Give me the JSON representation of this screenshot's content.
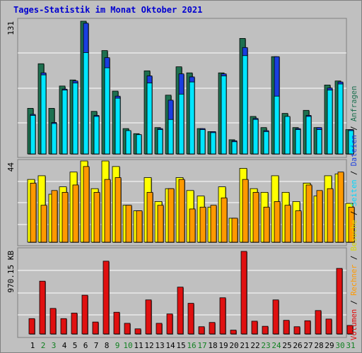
{
  "title": "Tages-Statistik im Monat Oktober 2021",
  "chart_data": {
    "type": "bar",
    "categories": [
      "1",
      "2",
      "3",
      "4",
      "5",
      "6",
      "7",
      "8",
      "9",
      "10",
      "11",
      "12",
      "13",
      "14",
      "15",
      "16",
      "17",
      "18",
      "19",
      "20",
      "21",
      "22",
      "23",
      "24",
      "25",
      "26",
      "27",
      "28",
      "29",
      "30",
      "31"
    ],
    "weekend_days": [
      "2",
      "3",
      "9",
      "10",
      "16",
      "17",
      "23",
      "24",
      "30",
      "31"
    ],
    "panels": [
      {
        "name": "top",
        "max_label": "131",
        "ylim": [
          0,
          131
        ],
        "series": [
          {
            "name": "Anfragen",
            "color": "#1e7050",
            "values": [
              45,
              89,
              45,
              67,
              73,
              131,
              42,
              102,
              62,
              25,
              20,
              82,
              26,
              58,
              86,
              80,
              25,
              22,
              80,
              14,
              114,
              37,
              26,
              96,
              40,
              26,
              43,
              26,
              68,
              72,
              24
            ]
          },
          {
            "name": "Dateien",
            "color": "#1a3ee0",
            "values": [
              39,
              80,
              31,
              64,
              72,
              129,
              38,
              95,
              57,
              23,
              19,
              77,
              25,
              53,
              79,
              76,
              25,
              22,
              79,
              13,
              105,
              35,
              23,
              96,
              37,
              25,
              38,
              26,
              65,
              71,
              24
            ]
          },
          {
            "name": "Seiten",
            "color": "#00e6ff",
            "values": [
              38,
              78,
              30,
              63,
              70,
              100,
              37,
              85,
              55,
              23,
              19,
              70,
              24,
              34,
              59,
              71,
              24,
              21,
              77,
              12,
              97,
              34,
              22,
              57,
              37,
              24,
              37,
              24,
              63,
              69,
              23
            ]
          }
        ]
      },
      {
        "name": "middle",
        "max_label": "44",
        "ylim": [
          0,
          44
        ],
        "series": [
          {
            "name": "Besuche",
            "color": "#ffff00",
            "values": [
              34,
              36,
              26,
              30,
              38,
              44,
              29,
              44,
              41,
              20,
              17,
              35,
              22,
              29,
              35,
              28,
              25,
              19,
              30,
              13,
              40,
              29,
              27,
              36,
              27,
              22,
              32,
              25,
              36,
              37,
              21
            ]
          },
          {
            "name": "Rechner",
            "color": "#ff9900",
            "values": [
              32,
              20,
              28,
              27,
              31,
              41,
              27,
              34,
              35,
              20,
              17,
              27,
              20,
              29,
              34,
              18,
              19,
              20,
              24,
              13,
              34,
              27,
              19,
              22,
              20,
              17,
              31,
              28,
              29,
              38,
              19
            ]
          }
        ]
      },
      {
        "name": "bottom",
        "max_label": "970.15 KB",
        "ylim": [
          0,
          970.15
        ],
        "series": [
          {
            "name": "Volumen",
            "color": "#e01010",
            "values": [
              180,
              620,
              300,
              180,
              245,
              455,
              140,
              855,
              255,
              125,
              60,
              400,
              125,
              235,
              550,
              360,
              85,
              135,
              425,
              45,
              970,
              150,
              90,
              400,
              160,
              85,
              155,
              275,
              175,
              770,
              100
            ]
          }
        ]
      }
    ],
    "right_axis_labels": [
      {
        "text": "Volumen",
        "color": "#e01010"
      },
      {
        "text": "Rechner",
        "color": "#ff9900"
      },
      {
        "text": "Besuche",
        "color": "#d8d800"
      },
      {
        "text": "Seiten",
        "color": "#00d8ff"
      },
      {
        "text": "Dateien",
        "color": "#1a3ee0"
      },
      {
        "text": "Anfragen",
        "color": "#1e7050"
      }
    ],
    "grid": true,
    "legend": "right"
  }
}
